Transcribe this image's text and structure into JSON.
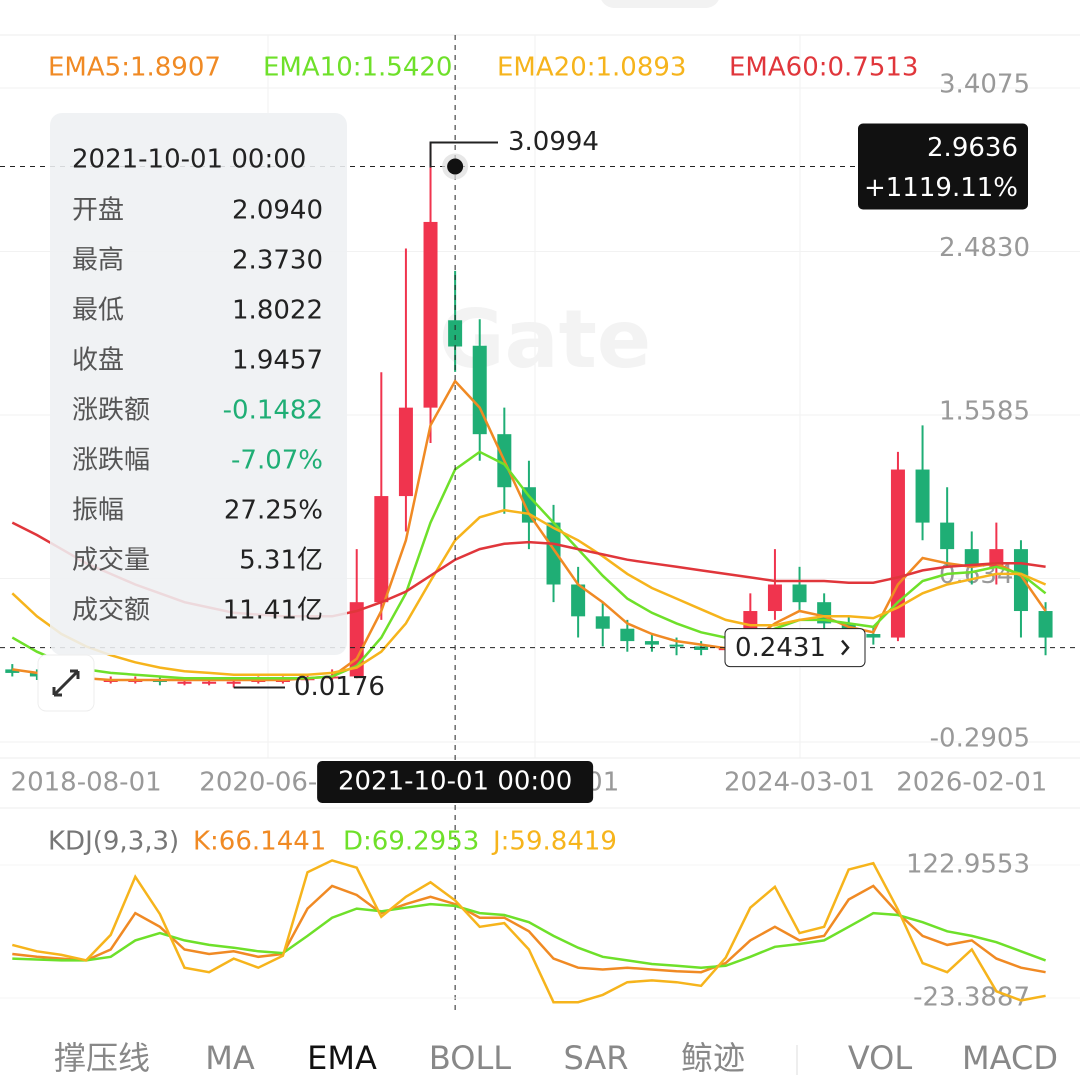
{
  "watermark": "Gate",
  "tooltip": {
    "title": "2021-10-01 00:00",
    "rows": [
      [
        "开盘",
        "2.0940"
      ],
      [
        "最高",
        "2.3730"
      ],
      [
        "最低",
        "1.8022"
      ],
      [
        "收盘",
        "1.9457"
      ],
      [
        "涨跌额",
        "-0.1482"
      ],
      [
        "涨跌幅",
        "-7.07%"
      ],
      [
        "振幅",
        "27.25%"
      ],
      [
        "成交量",
        "5.31亿"
      ],
      [
        "成交额",
        "11.41亿"
      ]
    ]
  },
  "tabs": [
    "撑压线",
    "MA",
    "EMA",
    "BOLL",
    "SAR",
    "鲸迹",
    "VOL",
    "MACD"
  ],
  "chart_data": [
    {
      "type": "candlestick",
      "up_color": "#f0344e",
      "down_color": "#1fae75",
      "xlim": [
        -0.5,
        43.4
      ],
      "xticks": [
        {
          "value": 3,
          "label": "2018-08-01"
        },
        {
          "value": 10,
          "label": "2020-06-"
        },
        {
          "value": 24,
          "label": "01"
        },
        {
          "value": 32,
          "label": "2024-03-01"
        },
        {
          "value": 39,
          "label": "2026-02-01"
        }
      ],
      "ylim": [
        -0.381,
        3.707
      ],
      "yticks": [
        3.4075,
        {
          "value": 2.483,
          "label": "2.4830"
        },
        1.5585,
        {
          "value": 0.634,
          "label": "0.6340"
        },
        -0.2905
      ],
      "open": [
        0.12,
        0.1,
        0.08,
        0.07,
        0.06,
        0.06,
        0.06,
        0.05,
        0.05,
        0.05,
        0.05,
        0.06,
        0.06,
        0.07,
        0.08,
        0.5,
        1.1,
        1.6,
        2.094,
        1.95,
        1.45,
        1.15,
        0.95,
        0.6,
        0.42,
        0.35,
        0.28,
        0.26,
        0.25,
        0.23,
        0.24,
        0.45,
        0.6,
        0.5,
        0.38,
        0.32,
        0.3,
        1.25,
        0.95,
        0.8,
        0.7,
        0.8,
        0.45
      ],
      "high": [
        0.15,
        0.12,
        0.1,
        0.09,
        0.08,
        0.08,
        0.08,
        0.07,
        0.07,
        0.07,
        0.08,
        0.08,
        0.09,
        0.12,
        0.8,
        1.8,
        2.5,
        3.0994,
        2.373,
        2.1,
        1.6,
        1.3,
        1.05,
        0.7,
        0.5,
        0.4,
        0.32,
        0.3,
        0.28,
        0.27,
        0.55,
        0.8,
        0.7,
        0.55,
        0.42,
        0.36,
        1.35,
        1.5,
        1.15,
        0.9,
        0.95,
        0.85,
        0.5
      ],
      "low": [
        0.08,
        0.06,
        0.05,
        0.04,
        0.04,
        0.04,
        0.03,
        0.03,
        0.03,
        0.0176,
        0.04,
        0.04,
        0.05,
        0.06,
        0.07,
        0.4,
        0.9,
        1.4,
        1.8022,
        1.3,
        1.0,
        0.8,
        0.5,
        0.3,
        0.25,
        0.22,
        0.22,
        0.2,
        0.2,
        0.2,
        0.22,
        0.4,
        0.45,
        0.35,
        0.3,
        0.26,
        0.28,
        0.85,
        0.7,
        0.6,
        0.6,
        0.3,
        0.2
      ],
      "close": [
        0.1,
        0.08,
        0.07,
        0.06,
        0.06,
        0.06,
        0.05,
        0.05,
        0.05,
        0.05,
        0.06,
        0.06,
        0.07,
        0.08,
        0.5,
        1.1,
        1.6,
        2.65,
        1.9457,
        1.45,
        1.15,
        0.95,
        0.6,
        0.42,
        0.35,
        0.28,
        0.26,
        0.25,
        0.23,
        0.24,
        0.45,
        0.6,
        0.5,
        0.38,
        0.32,
        0.3,
        1.25,
        0.95,
        0.8,
        0.7,
        0.8,
        0.45,
        0.3
      ],
      "series": [
        {
          "name": "EMA5:1.8907",
          "color": "#f08a24",
          "values": [
            0.12,
            0.1,
            0.08,
            0.07,
            0.06,
            0.06,
            0.06,
            0.06,
            0.06,
            0.06,
            0.06,
            0.06,
            0.07,
            0.08,
            0.18,
            0.45,
            0.85,
            1.5,
            1.75,
            1.6,
            1.3,
            1.0,
            0.8,
            0.6,
            0.5,
            0.38,
            0.32,
            0.28,
            0.26,
            0.24,
            0.28,
            0.38,
            0.45,
            0.42,
            0.36,
            0.33,
            0.6,
            0.75,
            0.72,
            0.7,
            0.72,
            0.65,
            0.45
          ]
        },
        {
          "name": "EMA10:1.5420",
          "color": "#6ee02a",
          "values": [
            0.3,
            0.22,
            0.16,
            0.12,
            0.1,
            0.09,
            0.08,
            0.07,
            0.07,
            0.07,
            0.07,
            0.07,
            0.07,
            0.08,
            0.14,
            0.3,
            0.55,
            0.95,
            1.25,
            1.35,
            1.28,
            1.1,
            0.95,
            0.8,
            0.65,
            0.52,
            0.44,
            0.38,
            0.33,
            0.3,
            0.3,
            0.35,
            0.4,
            0.4,
            0.38,
            0.36,
            0.5,
            0.62,
            0.66,
            0.67,
            0.7,
            0.66,
            0.55
          ]
        },
        {
          "name": "EMA20:1.0893",
          "color": "#f6b41c",
          "values": [
            0.55,
            0.42,
            0.32,
            0.25,
            0.2,
            0.16,
            0.13,
            0.11,
            0.1,
            0.09,
            0.09,
            0.09,
            0.09,
            0.1,
            0.13,
            0.22,
            0.38,
            0.62,
            0.85,
            0.98,
            1.02,
            1.0,
            0.92,
            0.85,
            0.76,
            0.66,
            0.58,
            0.52,
            0.46,
            0.4,
            0.37,
            0.37,
            0.4,
            0.42,
            0.42,
            0.41,
            0.47,
            0.55,
            0.6,
            0.63,
            0.66,
            0.66,
            0.6
          ]
        },
        {
          "name": "EMA60:0.7513",
          "color": "#e0363b",
          "values": [
            0.95,
            0.88,
            0.8,
            0.72,
            0.66,
            0.6,
            0.55,
            0.5,
            0.47,
            0.44,
            0.43,
            0.42,
            0.42,
            0.42,
            0.45,
            0.5,
            0.56,
            0.65,
            0.74,
            0.8,
            0.83,
            0.84,
            0.83,
            0.8,
            0.77,
            0.74,
            0.72,
            0.7,
            0.68,
            0.66,
            0.64,
            0.62,
            0.62,
            0.62,
            0.61,
            0.61,
            0.64,
            0.68,
            0.7,
            0.71,
            0.72,
            0.72,
            0.7
          ]
        }
      ],
      "annotations": [
        {
          "label": "3.0994",
          "value": 3.0994,
          "index": 17
        },
        {
          "label": "0.0176",
          "value": 0.0176,
          "index": 9
        },
        {
          "label": "0.2431",
          "value": 0.2431
        }
      ],
      "crosshair": {
        "index": 18,
        "value": 2.9636,
        "label": "2.9636",
        "change": "+1119.11%",
        "date": "2021-10-01 00:00"
      }
    },
    {
      "type": "line",
      "title": "KDJ(9,3,3)",
      "xlim": [
        -0.5,
        43.4
      ],
      "ylim": [
        -36.6,
        150.5
      ],
      "yticks": [
        122.9553,
        -23.3887
      ],
      "series": [
        {
          "name": "K:66.1441",
          "color": "#f08a24",
          "values": [
            25,
            22,
            20,
            18,
            30,
            70,
            55,
            30,
            25,
            28,
            22,
            25,
            75,
            100,
            90,
            70,
            80,
            88,
            80,
            65,
            65,
            50,
            20,
            10,
            8,
            10,
            8,
            6,
            5,
            15,
            40,
            55,
            40,
            45,
            85,
            100,
            70,
            45,
            35,
            40,
            20,
            10,
            5
          ]
        },
        {
          "name": "D:69.2953",
          "color": "#6ee02a",
          "values": [
            20,
            19,
            18,
            18,
            22,
            40,
            48,
            40,
            35,
            32,
            28,
            26,
            45,
            65,
            75,
            72,
            76,
            80,
            78,
            70,
            68,
            60,
            45,
            32,
            22,
            18,
            14,
            12,
            10,
            12,
            22,
            33,
            36,
            40,
            55,
            70,
            68,
            60,
            50,
            45,
            38,
            28,
            18
          ]
        },
        {
          "name": "J:59.8419",
          "color": "#f6b41c",
          "values": [
            35,
            28,
            24,
            18,
            46,
            110,
            69,
            10,
            5,
            20,
            10,
            23,
            115,
            128,
            120,
            66,
            88,
            104,
            84,
            55,
            59,
            30,
            -28,
            -28,
            -20,
            -6,
            -4,
            -6,
            -10,
            21,
            76,
            99,
            48,
            55,
            118,
            125,
            74,
            15,
            5,
            30,
            -16,
            -26,
            -21
          ]
        }
      ]
    }
  ]
}
